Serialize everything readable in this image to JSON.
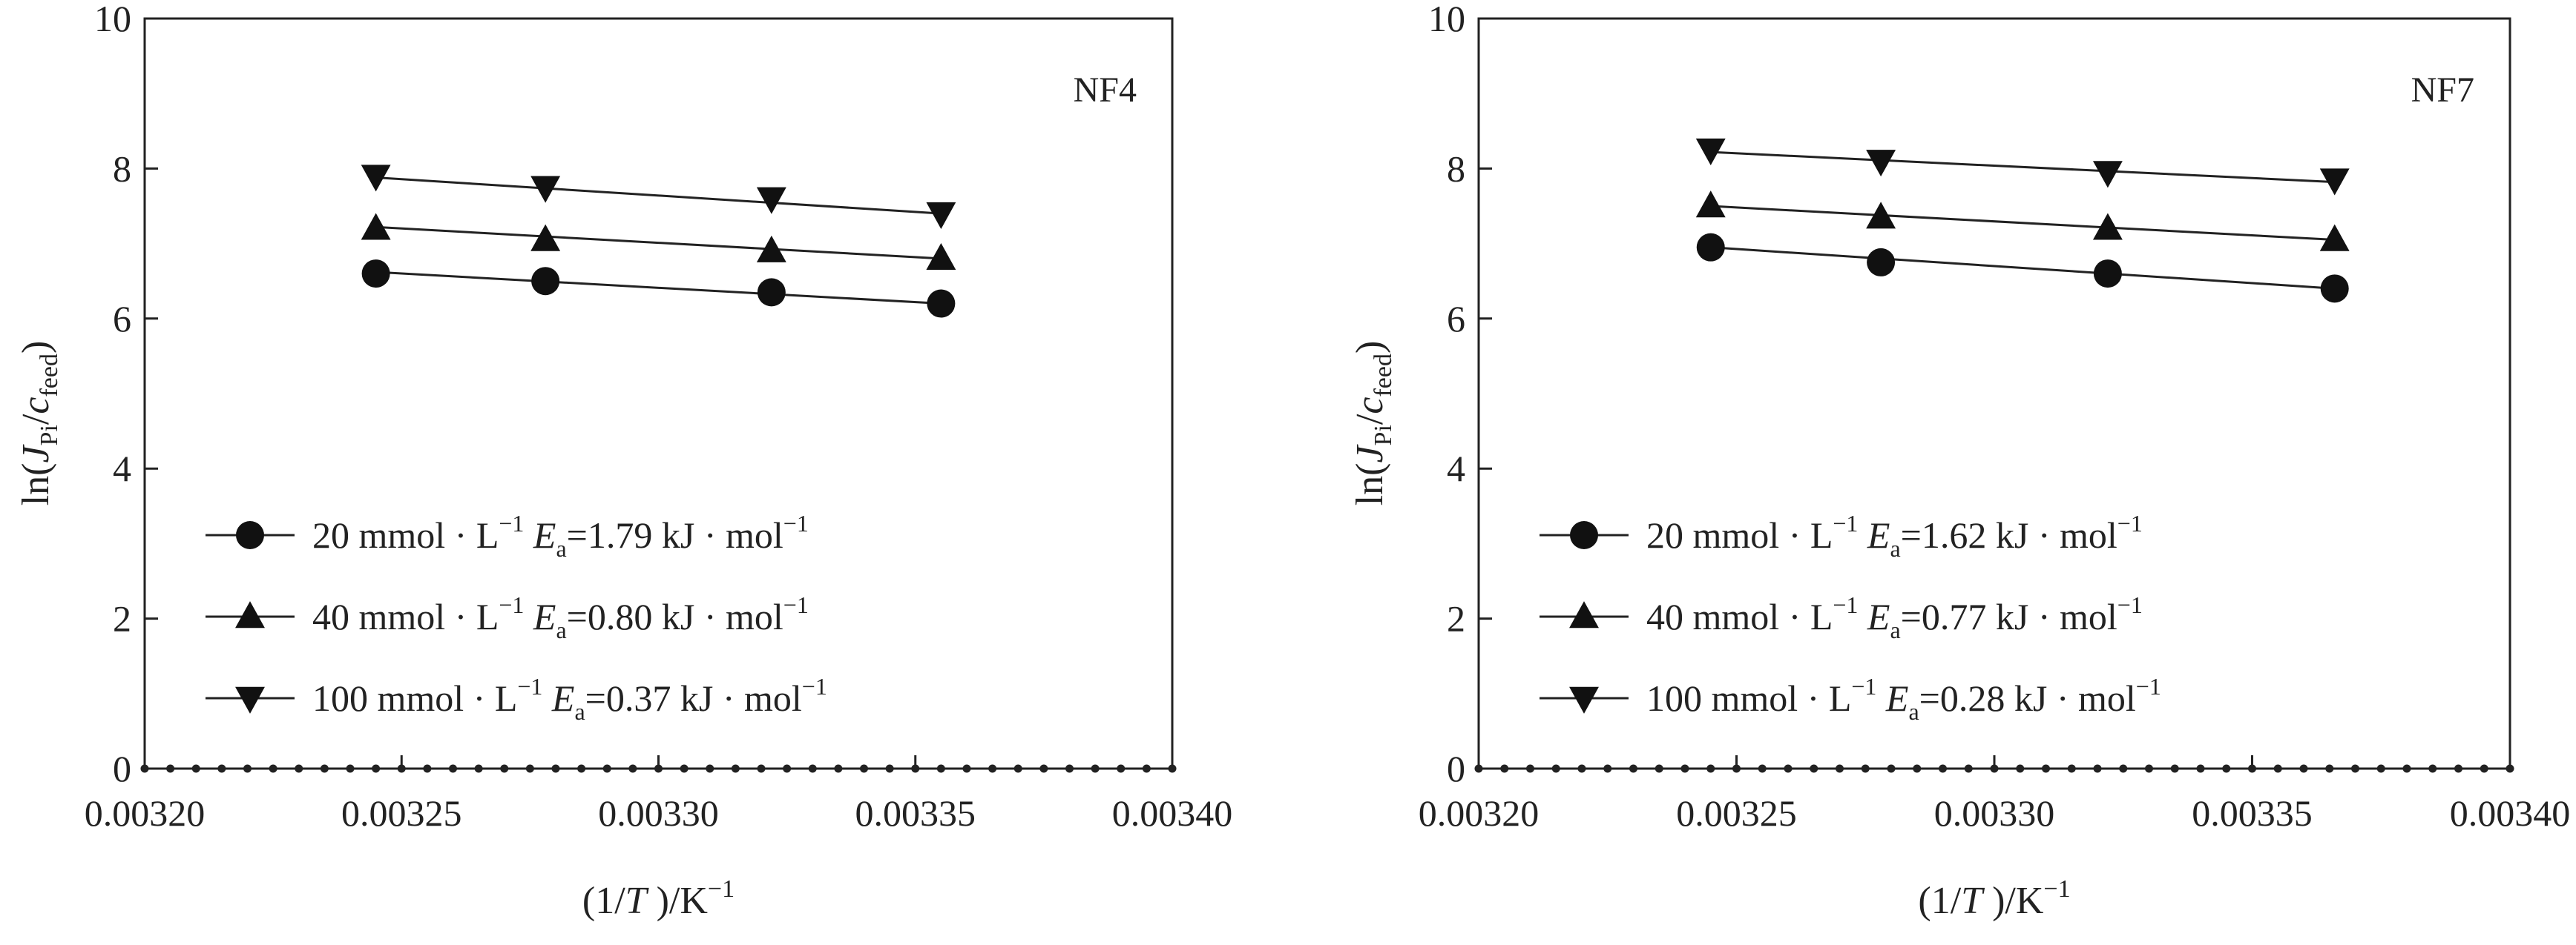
{
  "chart_data": [
    {
      "type": "scatter",
      "panel_label": "NF4",
      "ylabel": {
        "pre": "ln(",
        "J": "J",
        "pi_sub": "Pi",
        "slash": "/",
        "c": "c",
        "feed_sub": "feed",
        "post": ")"
      },
      "xlabel": {
        "pre": "(1/",
        "T": "T",
        "post": ")/K",
        "sup": "−1"
      },
      "xlim": [
        0.0032,
        0.0034
      ],
      "ylim": [
        0,
        10
      ],
      "x_ticks": [
        "0.00320",
        "0.00325",
        "0.00330",
        "0.00335",
        "0.00340"
      ],
      "x_tick_values": [
        0.0032,
        0.00325,
        0.0033,
        0.00335,
        0.0034
      ],
      "y_ticks": [
        "0",
        "2",
        "4",
        "6",
        "8",
        "10"
      ],
      "y_tick_values": [
        0,
        2,
        4,
        6,
        8,
        10
      ],
      "x": [
        0.003245,
        0.003278,
        0.003322,
        0.003355
      ],
      "series": [
        {
          "name": "20 mmol",
          "marker": "circle",
          "values": [
            6.6,
            6.5,
            6.35,
            6.2
          ],
          "fit": [
            6.62,
            6.2
          ],
          "legend": {
            "conc": "20 mmol · L",
            "conc_sup": "−1",
            "E": "E",
            "E_sub": "a",
            "value": "=1.79 kJ · mol",
            "value_sup": "−1"
          }
        },
        {
          "name": "40 mmol",
          "marker": "triangle-up",
          "values": [
            7.2,
            7.05,
            6.9,
            6.8
          ],
          "fit": [
            7.22,
            6.8
          ],
          "legend": {
            "conc": "40 mmol · L",
            "conc_sup": "−1",
            "E": "E",
            "E_sub": "a",
            "value": "=0.80 kJ · mol",
            "value_sup": "−1"
          }
        },
        {
          "name": "100 mmol",
          "marker": "triangle-down",
          "values": [
            7.9,
            7.75,
            7.6,
            7.4
          ],
          "fit": [
            7.88,
            7.4
          ],
          "legend": {
            "conc": "100 mmol · L",
            "conc_sup": "−1",
            "E": "E",
            "E_sub": "a",
            "value": "=0.37 kJ · mol",
            "value_sup": "−1"
          }
        }
      ]
    },
    {
      "type": "scatter",
      "panel_label": "NF7",
      "ylabel": {
        "pre": "ln(",
        "J": "J",
        "pi_sub": "Pi",
        "slash": "/",
        "c": "c",
        "feed_sub": "feed",
        "post": ")"
      },
      "xlabel": {
        "pre": "(1/",
        "T": "T",
        "post": ")/K",
        "sup": "−1"
      },
      "xlim": [
        0.0032,
        0.0034
      ],
      "ylim": [
        0,
        10
      ],
      "x_ticks": [
        "0.00320",
        "0.00325",
        "0.00330",
        "0.00335",
        "0.00340"
      ],
      "x_tick_values": [
        0.0032,
        0.00325,
        0.0033,
        0.00335,
        0.0034
      ],
      "y_ticks": [
        "0",
        "2",
        "4",
        "6",
        "8",
        "10"
      ],
      "y_tick_values": [
        0,
        2,
        4,
        6,
        8,
        10
      ],
      "x": [
        0.003245,
        0.003278,
        0.003322,
        0.003366
      ],
      "series": [
        {
          "name": "20 mmol",
          "marker": "circle",
          "values": [
            6.95,
            6.75,
            6.6,
            6.4
          ],
          "fit": [
            6.95,
            6.4
          ],
          "legend": {
            "conc": "20 mmol · L",
            "conc_sup": "−1",
            "E": "E",
            "E_sub": "a",
            "value": "=1.62 kJ · mol",
            "value_sup": "−1"
          }
        },
        {
          "name": "40 mmol",
          "marker": "triangle-up",
          "values": [
            7.5,
            7.35,
            7.2,
            7.05
          ],
          "fit": [
            7.5,
            7.05
          ],
          "legend": {
            "conc": "40 mmol · L",
            "conc_sup": "−1",
            "E": "E",
            "E_sub": "a",
            "value": "=0.77 kJ · mol",
            "value_sup": "−1"
          }
        },
        {
          "name": "100 mmol",
          "marker": "triangle-down",
          "values": [
            8.25,
            8.1,
            7.95,
            7.85
          ],
          "fit": [
            8.22,
            7.82
          ],
          "legend": {
            "conc": "100 mmol · L",
            "conc_sup": "−1",
            "E": "E",
            "E_sub": "a",
            "value": "=0.28 kJ · mol",
            "value_sup": "−1"
          }
        }
      ]
    }
  ]
}
